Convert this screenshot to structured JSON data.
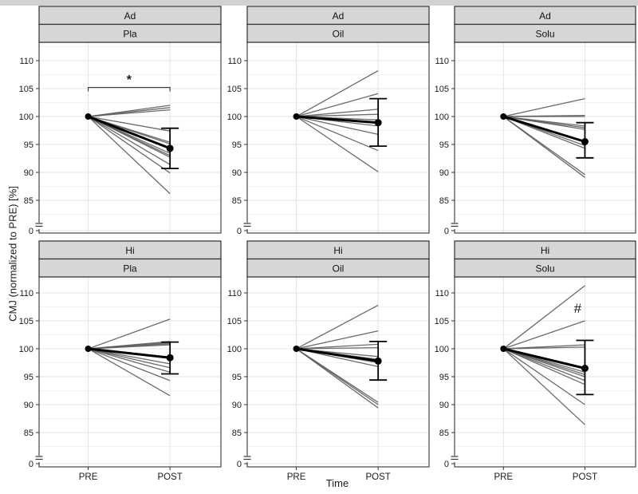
{
  "colors": {
    "top_bar": "#d2d2d2",
    "strip_bg": "#d6d6d6",
    "strip_border": "#2f2f2f",
    "panel_bg": "#ffffff",
    "panel_border": "#454545",
    "grid_major": "#e4e4e4",
    "grid_minor": "#f2f2f2",
    "subject_line": "#5b5b5b",
    "mean_black": "#000000",
    "text": "#1b1b1b"
  },
  "chart_data": {
    "type": "line",
    "title": "",
    "xlabel": "Time",
    "ylabel": "CMJ (normalized to PRE) [%]",
    "x_categories": [
      "PRE",
      "POST"
    ],
    "y_tick_labels": [
      "110",
      "105",
      "100",
      "95",
      "90",
      "85",
      "0"
    ],
    "y_tick_values": [
      110,
      105,
      100,
      95,
      90,
      85
    ],
    "y_minor_values": [
      112.5,
      107.5,
      102.5,
      97.5,
      92.5,
      87.5,
      82.5
    ],
    "y_axis_break": true,
    "ylim_display": [
      82,
      113
    ],
    "grid": "major+minor",
    "legend": "none",
    "facet_rows": [
      "Ad",
      "Hi"
    ],
    "facet_cols": [
      "Pla",
      "Oil",
      "Solu"
    ],
    "panels": [
      {
        "facet_row": "Ad",
        "facet_col": "Pla",
        "pre_value": 100,
        "individual_post": [
          102.0,
          101.6,
          101.2,
          97.4,
          95.4,
          95.1,
          93.4,
          93.0,
          92.7,
          91.4,
          89.9,
          86.2
        ],
        "mean_post": 94.3,
        "ci_post": [
          90.7,
          97.9
        ],
        "significance": {
          "symbol": "*",
          "style": "bracket",
          "bracket_value": 105.2,
          "symbol_value": 106.6,
          "x_frac": 0.495
        }
      },
      {
        "facet_row": "Ad",
        "facet_col": "Oil",
        "pre_value": 100,
        "individual_post": [
          108.2,
          104.1,
          101.3,
          100.4,
          99.4,
          99.0,
          98.3,
          96.8,
          93.9,
          90.1
        ],
        "mean_post": 98.9,
        "ci_post": [
          94.7,
          103.2
        ],
        "significance": null
      },
      {
        "facet_row": "Ad",
        "facet_col": "Solu",
        "pre_value": 100,
        "individual_post": [
          103.2,
          100.2,
          100.0,
          98.3,
          98.0,
          97.7,
          94.8,
          94.3,
          89.6,
          89.1
        ],
        "mean_post": 95.5,
        "ci_post": [
          92.6,
          98.9
        ],
        "significance": null
      },
      {
        "facet_row": "Hi",
        "facet_col": "Pla",
        "pre_value": 100,
        "individual_post": [
          105.3,
          101.3,
          101.1,
          100.9,
          100.7,
          97.3,
          96.6,
          95.8,
          94.3,
          91.6
        ],
        "mean_post": 98.4,
        "ci_post": [
          95.5,
          101.2
        ],
        "significance": null
      },
      {
        "facet_row": "Hi",
        "facet_col": "Oil",
        "pre_value": 100,
        "individual_post": [
          107.8,
          103.2,
          100.8,
          100.2,
          98.6,
          98.1,
          97.5,
          96.8,
          90.4,
          90.0,
          89.4
        ],
        "mean_post": 97.8,
        "ci_post": [
          94.4,
          101.3
        ],
        "significance": null
      },
      {
        "facet_row": "Hi",
        "facet_col": "Solu",
        "pre_value": 100,
        "individual_post": [
          111.3,
          105.0,
          100.7,
          100.3,
          95.8,
          95.4,
          95.0,
          94.3,
          93.6,
          90.0,
          86.4
        ],
        "mean_post": 96.5,
        "ci_post": [
          91.8,
          101.5
        ],
        "significance": {
          "symbol": "#",
          "style": "text",
          "symbol_value": 107.3,
          "x_frac": 0.68
        }
      }
    ]
  }
}
